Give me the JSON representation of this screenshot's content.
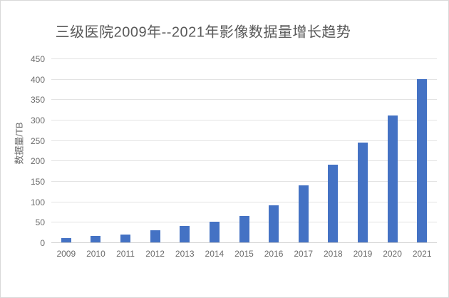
{
  "page": {
    "background": "#ffffff",
    "border_color": "#d9d9d9"
  },
  "chart_data": {
    "type": "bar",
    "title": "三级医院2009年--2021年影像数据量增长趋势",
    "xlabel": "",
    "ylabel": "数据量/TB",
    "categories": [
      "2009",
      "2010",
      "2011",
      "2012",
      "2013",
      "2014",
      "2015",
      "2016",
      "2017",
      "2018",
      "2019",
      "2020",
      "2021"
    ],
    "values": [
      10,
      15,
      20,
      30,
      40,
      50,
      65,
      90,
      140,
      190,
      245,
      310,
      400
    ],
    "ylim": [
      0,
      450
    ],
    "ytick_step": 50,
    "grid": "horizontal",
    "legend": "none",
    "bar_color": "#4472c4",
    "gridline_color": "#e3e3e3",
    "axis_line_color": "#cfcfcf",
    "title_color": "#595959",
    "tick_label_color": "#6b6b6b"
  }
}
